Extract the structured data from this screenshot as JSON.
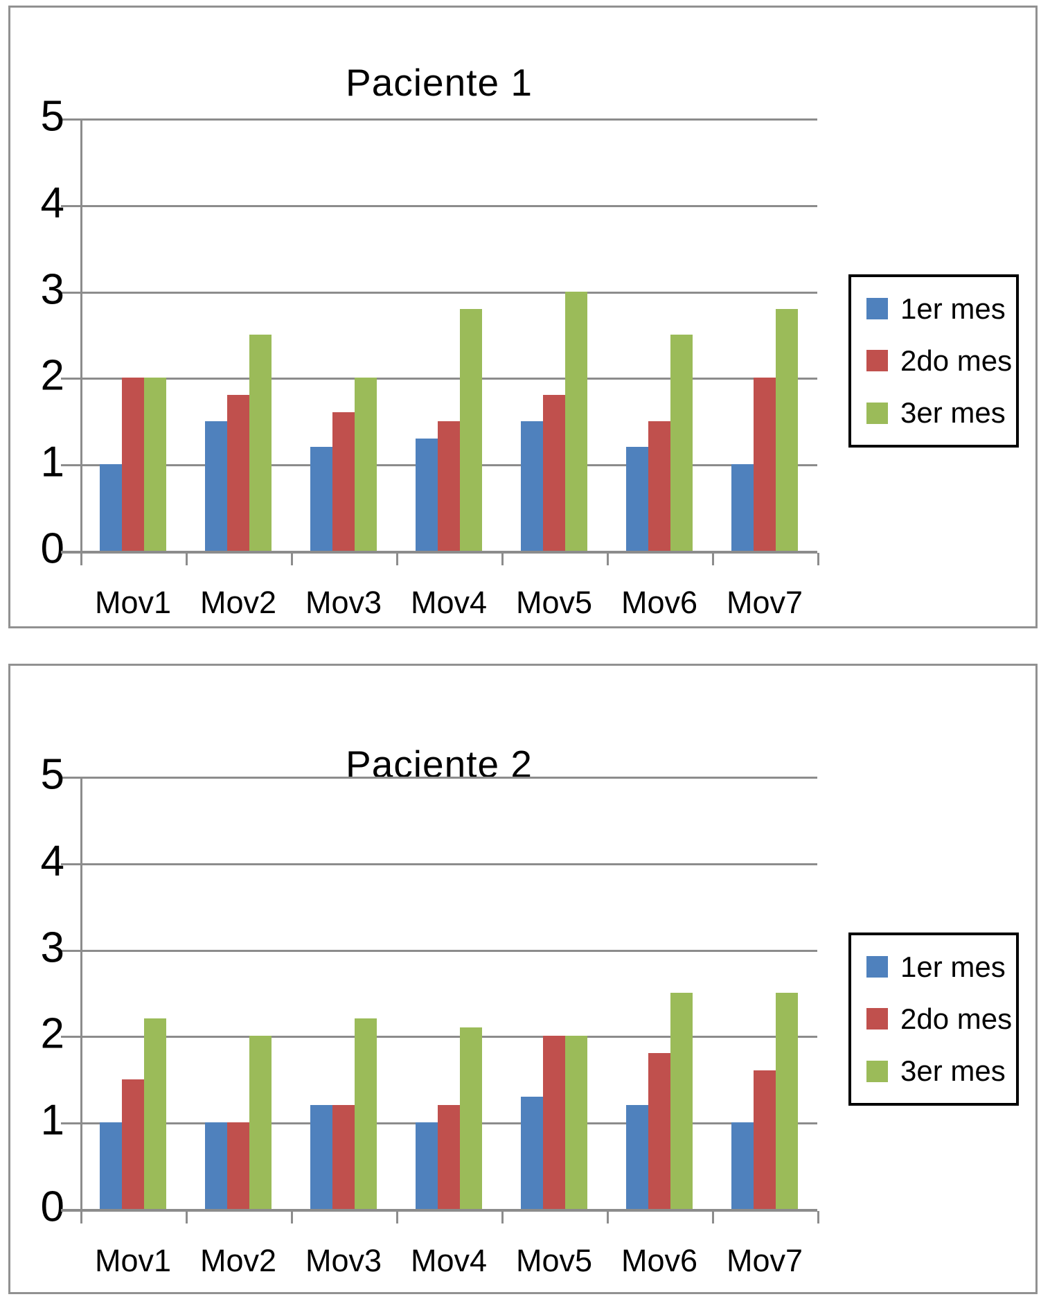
{
  "colors": {
    "series_1er_mes": "#4F81BD",
    "series_2do_mes": "#C0504D",
    "series_3er_mes": "#9BBB59",
    "gridline": "#8C8C8C",
    "axis": "#8C8C8C",
    "panel_border": "#919191",
    "legend_border": "#000000",
    "text": "#000000",
    "background": "#FFFFFF"
  },
  "chart_data": [
    {
      "type": "bar",
      "title": "Paciente 1",
      "categories": [
        "Mov1",
        "Mov2",
        "Mov3",
        "Mov4",
        "Mov5",
        "Mov6",
        "Mov7"
      ],
      "series": [
        {
          "name": "1er mes",
          "color": "#4F81BD",
          "values": [
            1.0,
            1.5,
            1.2,
            1.3,
            1.5,
            1.2,
            1.0
          ]
        },
        {
          "name": "2do mes",
          "color": "#C0504D",
          "values": [
            2.0,
            1.8,
            1.6,
            1.5,
            1.8,
            1.5,
            2.0
          ]
        },
        {
          "name": "3er mes",
          "color": "#9BBB59",
          "values": [
            2.0,
            2.5,
            2.0,
            2.8,
            3.0,
            2.5,
            2.8
          ]
        }
      ],
      "xlabel": "",
      "ylabel": "",
      "ylim": [
        0,
        5
      ],
      "y_ticks": [
        "0",
        "1",
        "2",
        "3",
        "4",
        "5"
      ],
      "grid": true,
      "legend_position": "right",
      "legend_labels": [
        "1er mes",
        "2do mes",
        "3er mes"
      ]
    },
    {
      "type": "bar",
      "title": "Paciente 2",
      "categories": [
        "Mov1",
        "Mov2",
        "Mov3",
        "Mov4",
        "Mov5",
        "Mov6",
        "Mov7"
      ],
      "series": [
        {
          "name": "1er mes",
          "color": "#4F81BD",
          "values": [
            1.0,
            1.0,
            1.2,
            1.0,
            1.3,
            1.2,
            1.0
          ]
        },
        {
          "name": "2do mes",
          "color": "#C0504D",
          "values": [
            1.5,
            1.0,
            1.2,
            1.2,
            2.0,
            1.8,
            1.6
          ]
        },
        {
          "name": "3er mes",
          "color": "#9BBB59",
          "values": [
            2.2,
            2.0,
            2.2,
            2.1,
            2.0,
            2.5,
            2.5
          ]
        }
      ],
      "xlabel": "",
      "ylabel": "",
      "ylim": [
        0,
        5
      ],
      "y_ticks": [
        "0",
        "1",
        "2",
        "3",
        "4",
        "5"
      ],
      "grid": true,
      "legend_position": "right",
      "legend_labels": [
        "1er mes",
        "2do mes",
        "3er mes"
      ]
    }
  ]
}
